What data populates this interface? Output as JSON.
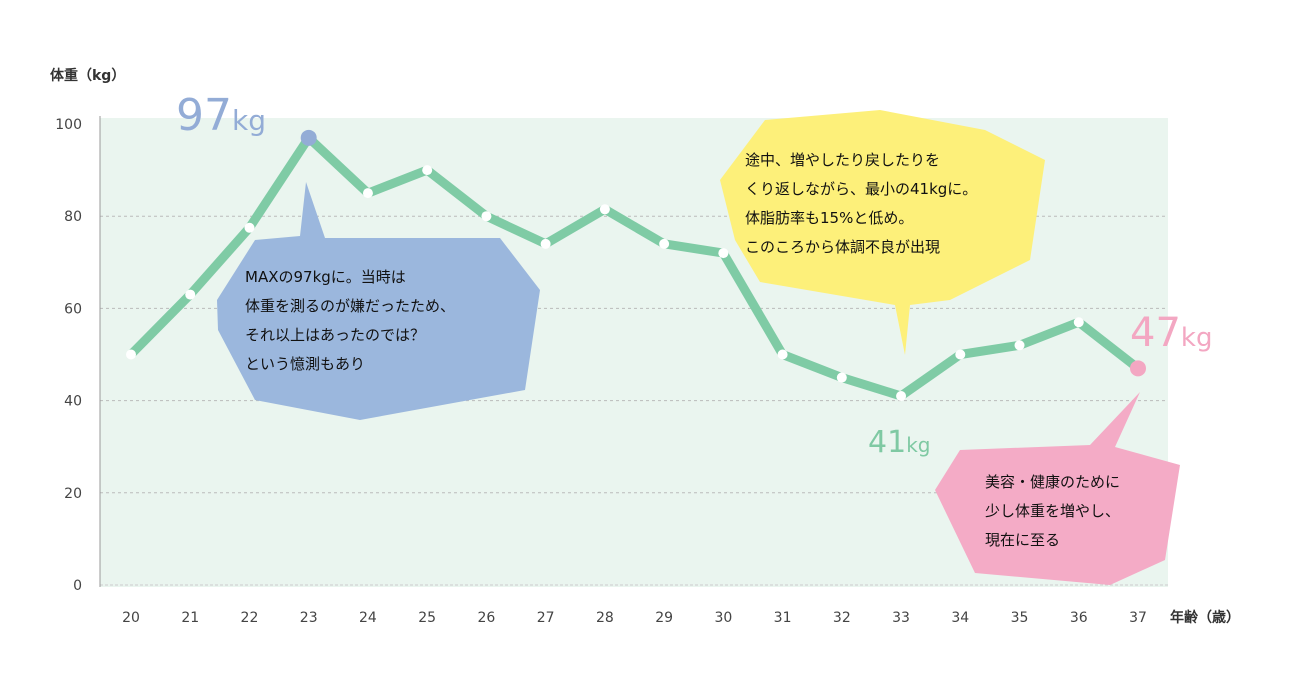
{
  "chart_data": {
    "type": "line",
    "ylabel": "体重（kg）",
    "xlabel": "年齢（歳）",
    "x": [
      20,
      21,
      22,
      23,
      24,
      25,
      26,
      27,
      28,
      29,
      30,
      31,
      32,
      33,
      34,
      35,
      36,
      37
    ],
    "values": [
      50,
      63,
      77.5,
      97,
      85,
      90,
      80,
      74,
      81.5,
      74,
      72,
      50,
      45,
      41,
      50,
      52,
      57,
      47
    ],
    "ylim": [
      0,
      100
    ],
    "yticks": [
      0,
      20,
      40,
      60,
      80,
      100
    ],
    "grid": true,
    "colors": {
      "line": "#7fcba5",
      "plot_bg": "#eaf5ef",
      "max": "#93acd6",
      "current": "#f3a7c2",
      "min": "#7fc9a3"
    },
    "highlights": {
      "max": {
        "number": "97",
        "unit": "kg"
      },
      "min": {
        "number": "41",
        "unit": "kg"
      },
      "current": {
        "number": "47",
        "unit": "kg"
      }
    },
    "annotations": [
      {
        "color": "#9bb7dd",
        "lines": [
          "MAXの97kgに。当時は",
          "体重を測るのが嫌だったため、",
          "それ以上はあったのでは？",
          "という憶測もあり"
        ]
      },
      {
        "color": "#fdf07a",
        "lines": [
          "途中、増やしたり戻したりを",
          "くり返しながら、最小の41kgに。",
          "体脂肪率も15%と低め。",
          "このころから体調不良が出現"
        ]
      },
      {
        "color": "#f4abc6",
        "lines": [
          "美容・健康のために",
          "少し体重を増やし、",
          "現在に至る"
        ]
      }
    ]
  }
}
